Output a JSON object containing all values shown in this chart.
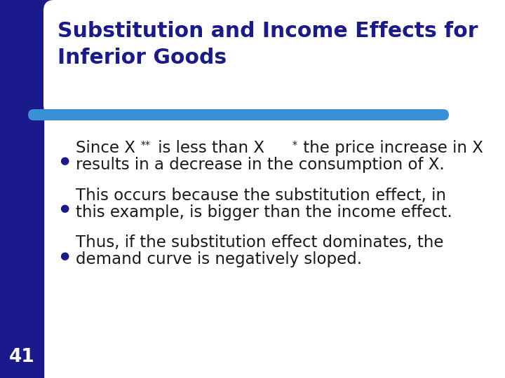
{
  "bg_color": "#ffffff",
  "left_bar_color": "#1a1a8c",
  "title_color": "#1a1a8c",
  "title_line1": "Substitution and Income Effects for",
  "title_line2": "Inferior Goods",
  "blue_bar_color": "#3b8fd4",
  "bullet_color": "#1a1a8c",
  "text_color": "#1a1a1a",
  "page_number": "41",
  "fig_width": 7.2,
  "fig_height": 5.4,
  "dpi": 100
}
